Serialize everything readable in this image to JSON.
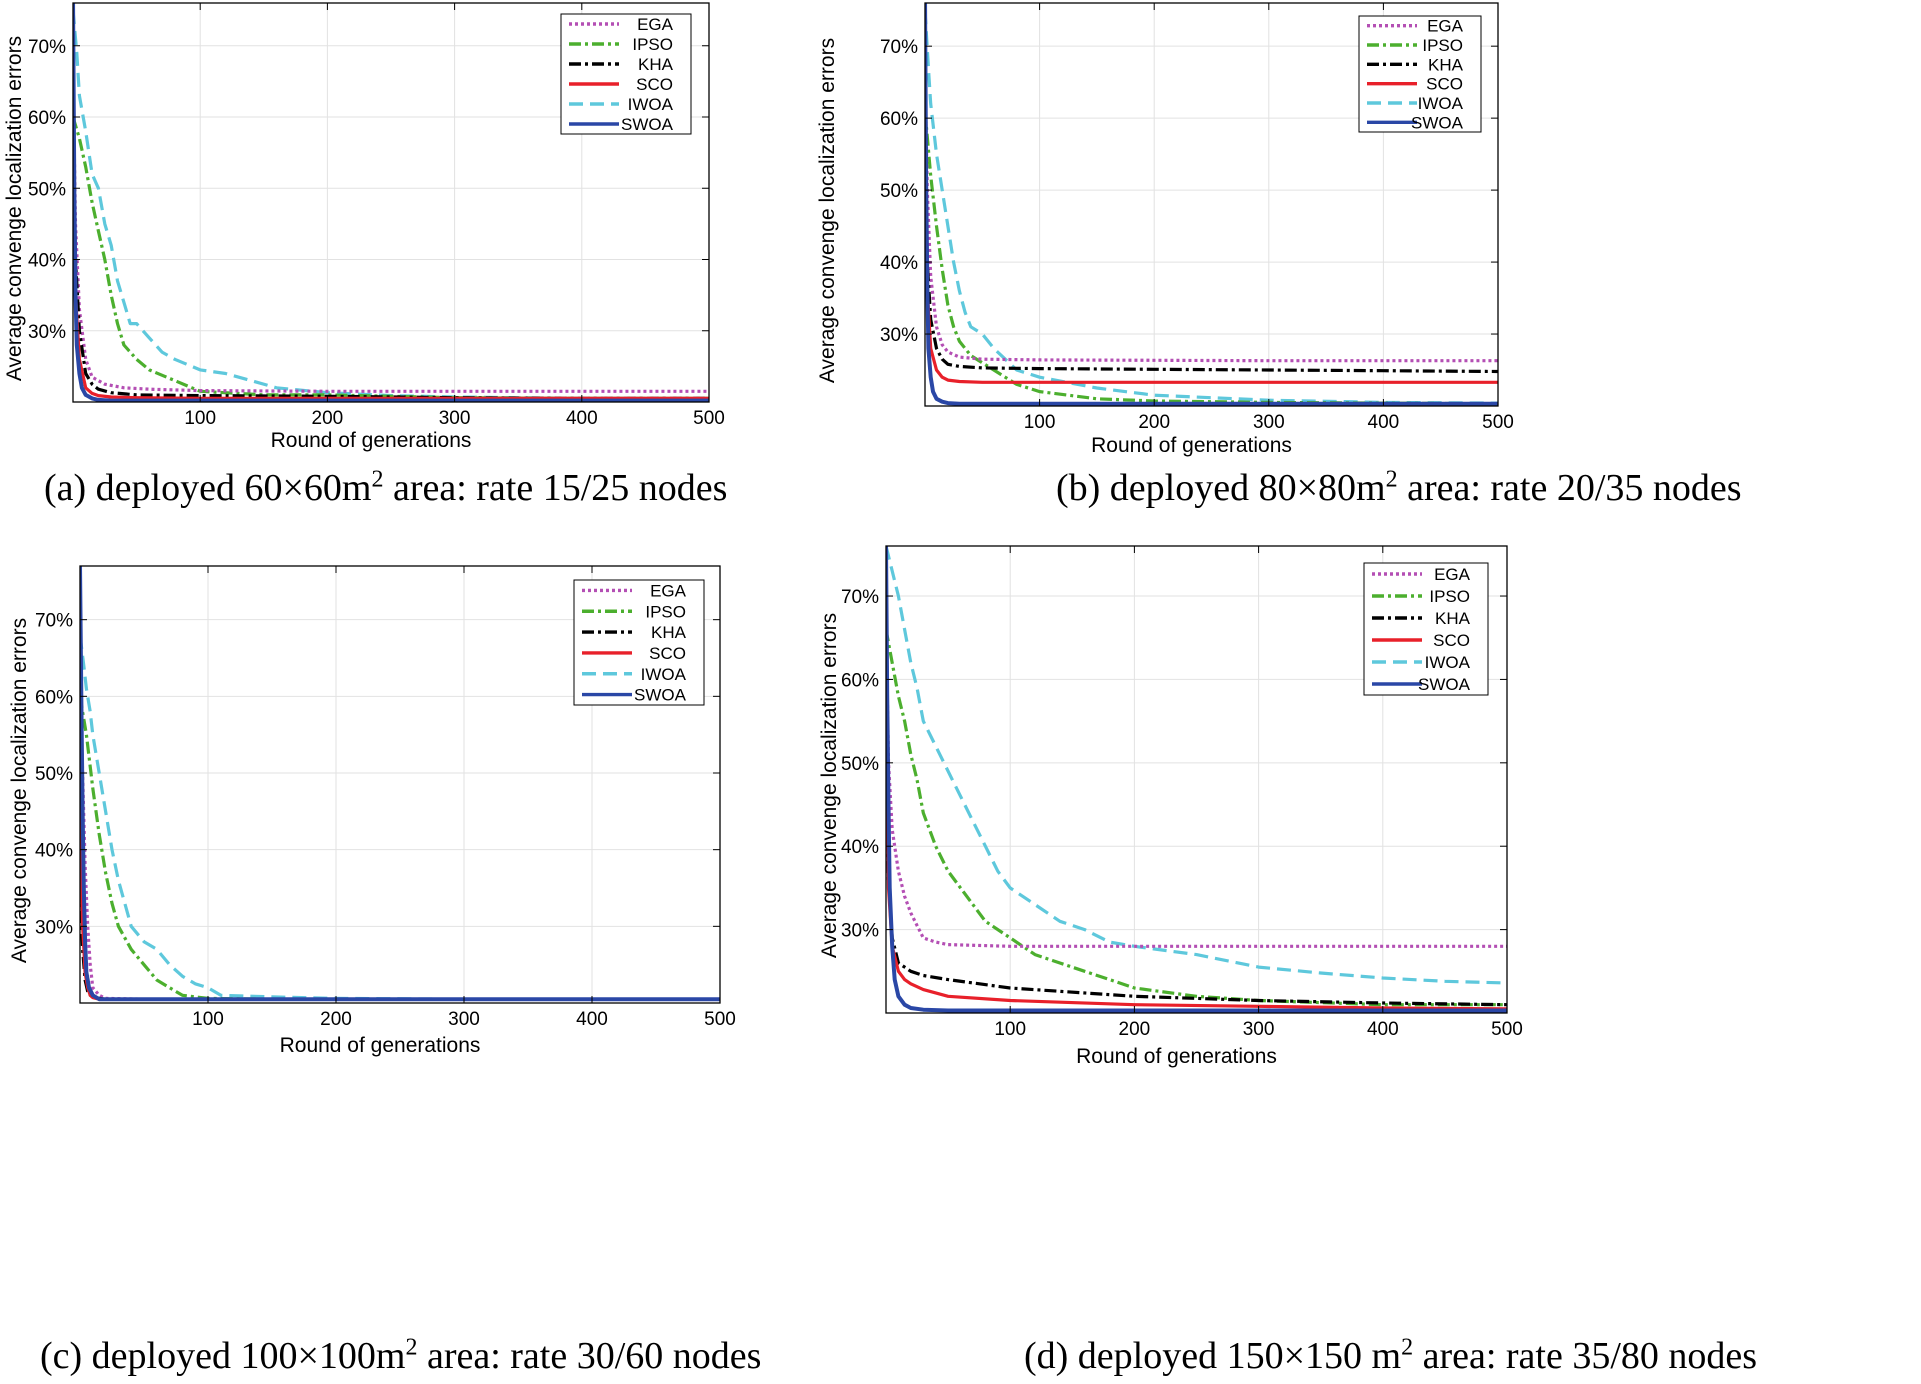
{
  "chart_data": [
    {
      "id": "a",
      "type": "line",
      "title": "",
      "caption": {
        "prefix": "(a) deployed 60×60m",
        "sup": "2",
        "suffix": " area: rate 15/25 nodes"
      },
      "xlabel": "Round of generations",
      "ylabel": "Average convenge localization errors",
      "xlim": [
        0,
        500
      ],
      "ylim": [
        20,
        76
      ],
      "xticks": [
        100,
        200,
        300,
        400,
        500
      ],
      "yticks": [
        30,
        40,
        50,
        60,
        70
      ],
      "ytick_labels": [
        "30%",
        "40%",
        "50%",
        "60%",
        "70%"
      ],
      "grid": true,
      "legend_position": "top-right",
      "series": [
        {
          "name": "EGA",
          "color": "#b44fb4",
          "dash": "dot",
          "x": [
            0,
            2,
            5,
            10,
            15,
            25,
            40,
            60,
            100,
            200,
            300,
            400,
            500
          ],
          "values": [
            66,
            45,
            33,
            26,
            23.5,
            22.5,
            22,
            21.8,
            21.6,
            21.5,
            21.5,
            21.5,
            21.5
          ]
        },
        {
          "name": "IPSO",
          "color": "#4caf2e",
          "dash": "dashdot",
          "x": [
            0,
            5,
            10,
            15,
            20,
            25,
            30,
            35,
            40,
            50,
            60,
            80,
            100,
            150,
            200,
            250,
            300,
            400,
            500
          ],
          "values": [
            60,
            57,
            53,
            48,
            44,
            40,
            35,
            31,
            28,
            26,
            24.5,
            23,
            21.5,
            21,
            21,
            20.8,
            20.6,
            20.5,
            20.5
          ]
        },
        {
          "name": "KHA",
          "color": "#000000",
          "dash": "dashdot",
          "x": [
            0,
            2,
            5,
            10,
            15,
            20,
            30,
            50,
            100,
            200,
            300,
            400,
            500
          ],
          "values": [
            57,
            40,
            30,
            24,
            22.5,
            21.8,
            21.3,
            21,
            20.9,
            20.8,
            20.6,
            20.5,
            20.5
          ]
        },
        {
          "name": "SCO",
          "color": "#e8202a",
          "dash": "solid",
          "x": [
            0,
            2,
            5,
            10,
            15,
            20,
            30,
            50,
            100,
            300,
            500
          ],
          "values": [
            58,
            35,
            26,
            22,
            21.2,
            20.9,
            20.7,
            20.6,
            20.5,
            20.5,
            20.5
          ]
        },
        {
          "name": "IWOA",
          "color": "#5ec8dc",
          "dash": "dash",
          "x": [
            0,
            3,
            5,
            10,
            15,
            20,
            25,
            30,
            35,
            40,
            45,
            50,
            60,
            70,
            80,
            100,
            120,
            140,
            160,
            200,
            250,
            300,
            400,
            500
          ],
          "values": [
            75,
            69,
            63,
            58,
            52,
            50,
            45,
            42,
            37,
            34,
            31,
            31,
            29,
            27,
            26,
            24.5,
            24,
            23,
            22,
            21.3,
            20.9,
            20.7,
            20.5,
            20.5
          ]
        },
        {
          "name": "SWOA",
          "color": "#2a47a6",
          "dash": "solid",
          "x": [
            0,
            1,
            2,
            3,
            5,
            7,
            10,
            15,
            20,
            30,
            50,
            500
          ],
          "values": [
            77,
            50,
            35,
            28,
            24,
            22,
            21,
            20.5,
            20.3,
            20.2,
            20.2,
            20.2
          ]
        }
      ]
    },
    {
      "id": "b",
      "type": "line",
      "title": "",
      "caption": {
        "prefix": "(b) deployed 80×80m",
        "sup": "2",
        "suffix": " area: rate 20/35 nodes"
      },
      "xlabel": "Round of generations",
      "ylabel": "Average convenge localization errors",
      "xlim": [
        0,
        500
      ],
      "ylim": [
        20,
        76
      ],
      "xticks": [
        100,
        200,
        300,
        400,
        500
      ],
      "yticks": [
        30,
        40,
        50,
        60,
        70
      ],
      "ytick_labels": [
        "30%",
        "40%",
        "50%",
        "60%",
        "70%"
      ],
      "grid": true,
      "legend_position": "top-right",
      "series": [
        {
          "name": "EGA",
          "color": "#b44fb4",
          "dash": "dot",
          "x": [
            0,
            2,
            5,
            10,
            15,
            20,
            30,
            50,
            100,
            300,
            500
          ],
          "values": [
            66,
            50,
            38,
            31,
            28.5,
            27.5,
            26.8,
            26.5,
            26.4,
            26.3,
            26.3
          ]
        },
        {
          "name": "IPSO",
          "color": "#4caf2e",
          "dash": "dashdot",
          "x": [
            0,
            5,
            10,
            15,
            20,
            25,
            30,
            40,
            50,
            60,
            70,
            80,
            100,
            150,
            200,
            300,
            400,
            500
          ],
          "values": [
            61,
            52,
            45,
            39,
            34,
            31,
            29,
            27,
            26,
            25,
            24,
            23,
            22,
            21,
            20.7,
            20.5,
            20.4,
            20.3
          ]
        },
        {
          "name": "KHA",
          "color": "#000000",
          "dash": "dashdot",
          "x": [
            0,
            2,
            5,
            10,
            15,
            20,
            30,
            50,
            100,
            200,
            300,
            400,
            500
          ],
          "values": [
            55,
            40,
            32,
            28,
            26.5,
            25.8,
            25.5,
            25.3,
            25.2,
            25.1,
            25,
            24.9,
            24.8
          ]
        },
        {
          "name": "SCO",
          "color": "#e8202a",
          "dash": "solid",
          "x": [
            0,
            2,
            5,
            10,
            15,
            20,
            30,
            50,
            100,
            300,
            500
          ],
          "values": [
            56,
            36,
            28,
            25,
            24,
            23.6,
            23.4,
            23.3,
            23.3,
            23.3,
            23.3
          ]
        },
        {
          "name": "IWOA",
          "color": "#5ec8dc",
          "dash": "dash",
          "x": [
            0,
            3,
            5,
            10,
            15,
            20,
            25,
            30,
            35,
            40,
            50,
            60,
            80,
            100,
            150,
            200,
            300,
            400,
            500
          ],
          "values": [
            75,
            67,
            62,
            55,
            50,
            45,
            40,
            36,
            33,
            31,
            30,
            28,
            25,
            24,
            22.5,
            21.5,
            20.8,
            20.5,
            20.4
          ]
        },
        {
          "name": "SWOA",
          "color": "#2a47a6",
          "dash": "solid",
          "x": [
            0,
            1,
            2,
            3,
            5,
            7,
            10,
            15,
            20,
            30,
            500
          ],
          "values": [
            77,
            52,
            37,
            28,
            24,
            22,
            21,
            20.6,
            20.4,
            20.3,
            20.3
          ]
        }
      ]
    },
    {
      "id": "c",
      "type": "line",
      "title": "",
      "caption": {
        "prefix": "(c) deployed 100×100m",
        "sup": "2",
        "suffix": " area: rate 30/60 nodes"
      },
      "xlabel": "Round of generations",
      "ylabel": "Average convenge localization errors",
      "xlim": [
        0,
        500
      ],
      "ylim": [
        20,
        77
      ],
      "xticks": [
        100,
        200,
        300,
        400,
        500
      ],
      "yticks": [
        30,
        40,
        50,
        60,
        70
      ],
      "ytick_labels": [
        "30%",
        "40%",
        "50%",
        "60%",
        "70%"
      ],
      "grid": true,
      "legend_position": "top-right",
      "series": [
        {
          "name": "EGA",
          "color": "#b44fb4",
          "dash": "dot",
          "x": [
            0,
            2,
            4,
            6,
            8,
            10,
            15,
            20,
            50,
            500
          ],
          "values": [
            62,
            50,
            38,
            30,
            25,
            22,
            21,
            20.6,
            20.5,
            20.5
          ]
        },
        {
          "name": "IPSO",
          "color": "#4caf2e",
          "dash": "dashdot",
          "x": [
            0,
            5,
            10,
            15,
            20,
            25,
            30,
            40,
            50,
            60,
            70,
            80,
            100,
            150,
            500
          ],
          "values": [
            60,
            55,
            48,
            42,
            37,
            33,
            30,
            27,
            25,
            23,
            22,
            21,
            20.6,
            20.5,
            20.5
          ]
        },
        {
          "name": "KHA",
          "color": "#000000",
          "dash": "dashdot",
          "x": [
            0,
            2,
            4,
            6,
            8,
            10,
            15,
            20,
            500
          ],
          "values": [
            35,
            27,
            23,
            21.5,
            21,
            20.8,
            20.6,
            20.5,
            20.5
          ]
        },
        {
          "name": "SCO",
          "color": "#e8202a",
          "dash": "solid",
          "x": [
            0,
            2,
            4,
            6,
            8,
            10,
            15,
            500
          ],
          "values": [
            47,
            30,
            24,
            22,
            21,
            20.7,
            20.5,
            20.5
          ]
        },
        {
          "name": "IWOA",
          "color": "#5ec8dc",
          "dash": "dash",
          "x": [
            0,
            3,
            5,
            8,
            10,
            15,
            20,
            25,
            30,
            35,
            40,
            50,
            60,
            70,
            80,
            90,
            100,
            110,
            150,
            200,
            300,
            500
          ],
          "values": [
            68,
            64,
            61,
            58,
            55,
            50,
            45,
            40,
            36,
            33,
            30,
            28,
            27,
            25,
            23.5,
            22.5,
            22,
            21,
            20.8,
            20.6,
            20.5,
            20.5
          ]
        },
        {
          "name": "SWOA",
          "color": "#2a47a6",
          "dash": "solid",
          "x": [
            0,
            1,
            2,
            3,
            4,
            5,
            7,
            10,
            15,
            500
          ],
          "values": [
            77,
            60,
            45,
            35,
            28,
            24,
            22,
            21,
            20.5,
            20.5
          ]
        }
      ]
    },
    {
      "id": "d",
      "type": "line",
      "title": "",
      "caption": {
        "prefix": "(d) deployed 150×150 m",
        "sup": "2",
        "suffix": " area: rate 35/80 nodes"
      },
      "xlabel": "Round of generations",
      "ylabel": "Average convenge localization errors",
      "xlim": [
        0,
        500
      ],
      "ylim": [
        20,
        76
      ],
      "xticks": [
        100,
        200,
        300,
        400,
        500
      ],
      "yticks": [
        30,
        40,
        50,
        60,
        70
      ],
      "ytick_labels": [
        "30%",
        "40%",
        "50%",
        "60%",
        "70%"
      ],
      "grid": true,
      "legend_position": "top-right",
      "series": [
        {
          "name": "EGA",
          "color": "#b44fb4",
          "dash": "dot",
          "x": [
            0,
            2,
            5,
            10,
            15,
            20,
            25,
            30,
            40,
            50,
            100,
            300,
            500
          ],
          "values": [
            67,
            50,
            42,
            37,
            34,
            32,
            30.5,
            29,
            28.5,
            28.2,
            28,
            28,
            28
          ]
        },
        {
          "name": "IPSO",
          "color": "#4caf2e",
          "dash": "dashdot",
          "x": [
            0,
            5,
            10,
            15,
            20,
            25,
            30,
            40,
            50,
            60,
            70,
            80,
            100,
            120,
            140,
            160,
            180,
            200,
            250,
            300,
            400,
            500
          ],
          "values": [
            66,
            62,
            58,
            55,
            51,
            48,
            44,
            40,
            37,
            35,
            33,
            31,
            29,
            27,
            26,
            25,
            24,
            23,
            22,
            21.5,
            21,
            21
          ]
        },
        {
          "name": "KHA",
          "color": "#000000",
          "dash": "dashdot",
          "x": [
            0,
            2,
            5,
            10,
            15,
            20,
            30,
            50,
            100,
            200,
            300,
            400,
            500
          ],
          "values": [
            52,
            36,
            29,
            26,
            25.5,
            25,
            24.5,
            24,
            23,
            22,
            21.5,
            21.2,
            21
          ]
        },
        {
          "name": "SCO",
          "color": "#e8202a",
          "dash": "solid",
          "x": [
            0,
            2,
            5,
            10,
            15,
            20,
            30,
            50,
            100,
            200,
            300,
            400,
            500
          ],
          "values": [
            66,
            35,
            28,
            25,
            24,
            23.5,
            22.8,
            22,
            21.5,
            21,
            20.8,
            20.6,
            20.5
          ]
        },
        {
          "name": "IWOA",
          "color": "#5ec8dc",
          "dash": "dash",
          "x": [
            0,
            5,
            10,
            15,
            20,
            25,
            30,
            40,
            50,
            60,
            70,
            80,
            90,
            100,
            120,
            140,
            160,
            180,
            200,
            250,
            300,
            350,
            400,
            450,
            500
          ],
          "values": [
            76,
            73,
            70,
            66,
            62,
            59,
            55,
            52,
            49,
            46,
            43,
            40,
            37,
            35,
            33,
            31,
            30,
            28.5,
            28,
            27,
            25.5,
            24.8,
            24.2,
            23.8,
            23.6
          ]
        },
        {
          "name": "SWOA",
          "color": "#2a47a6",
          "dash": "solid",
          "x": [
            0,
            1,
            2,
            3,
            5,
            7,
            10,
            15,
            20,
            30,
            50,
            500
          ],
          "values": [
            76,
            58,
            45,
            35,
            28,
            24,
            22,
            21,
            20.6,
            20.4,
            20.3,
            20.3
          ]
        }
      ]
    }
  ]
}
